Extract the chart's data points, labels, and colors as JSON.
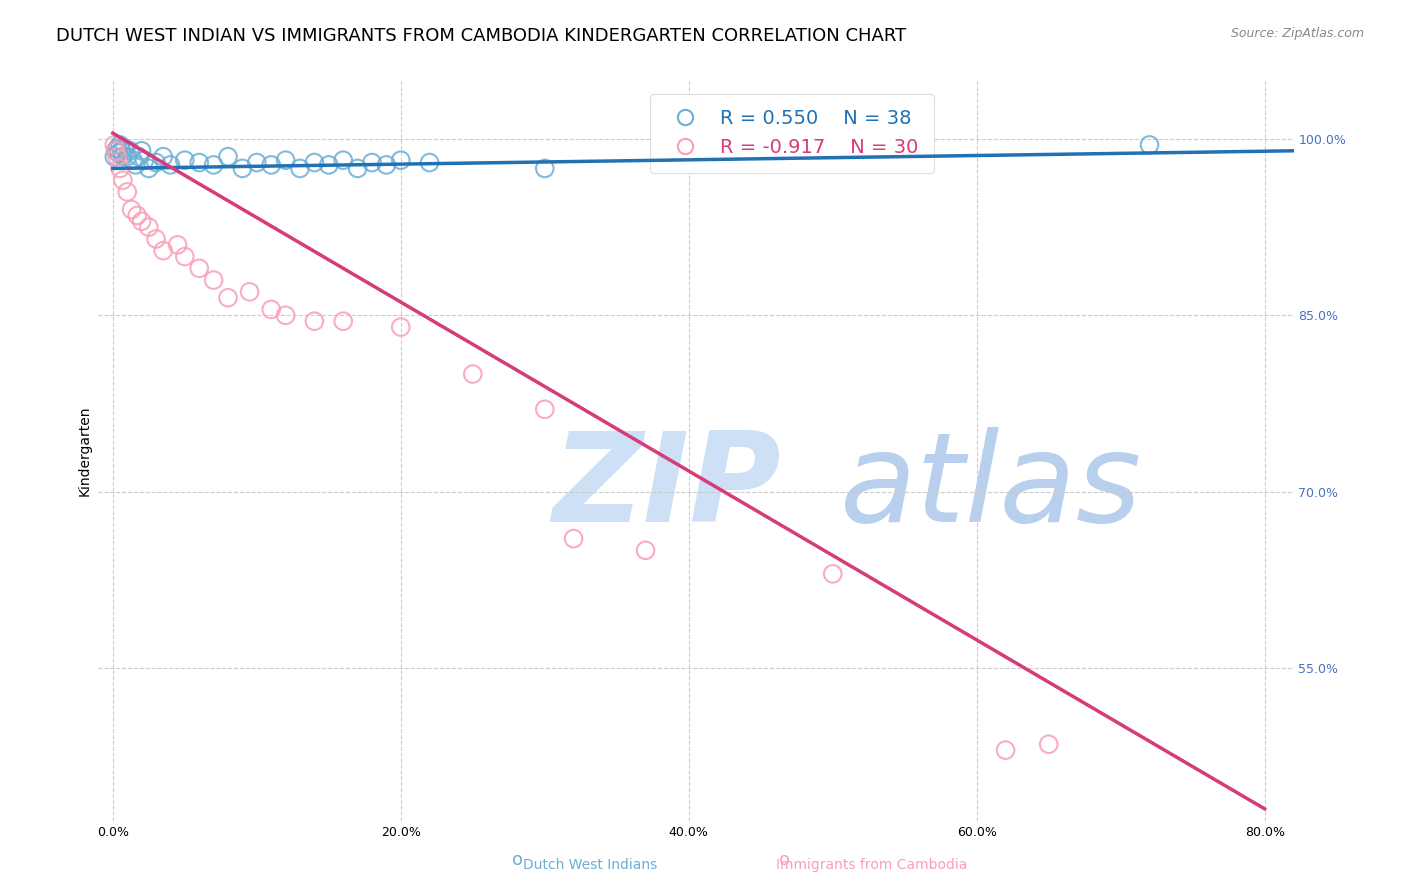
{
  "title": "DUTCH WEST INDIAN VS IMMIGRANTS FROM CAMBODIA KINDERGARTEN CORRELATION CHART",
  "source": "Source: ZipAtlas.com",
  "ylabel": "Kindergarten",
  "xlabel_vals": [
    0,
    20,
    40,
    60,
    80
  ],
  "ylabel_vals": [
    100,
    85,
    70,
    55
  ],
  "xlim": [
    -1,
    82
  ],
  "ylim": [
    42,
    105
  ],
  "blue_R": 0.55,
  "blue_N": 38,
  "pink_R": -0.917,
  "pink_N": 30,
  "blue_color": "#6baed6",
  "pink_color": "#fa9fb5",
  "blue_line_color": "#2171b5",
  "pink_line_color": "#d63b7a",
  "legend_label_blue": "Dutch West Indians",
  "legend_label_pink": "Immigrants from Cambodia",
  "watermark": "ZIPatlas",
  "blue_scatter_x": [
    0.1,
    0.2,
    0.3,
    0.4,
    0.5,
    0.6,
    0.7,
    0.8,
    1.0,
    1.2,
    1.4,
    1.6,
    1.8,
    2.0,
    2.2,
    2.5,
    3.0,
    3.5,
    4.0,
    5.0,
    6.0,
    7.0,
    8.0,
    9.0,
    10.0,
    11.0,
    12.0,
    13.0,
    14.0,
    15.0,
    16.0,
    17.0,
    18.0,
    19.0,
    20.0,
    22.0,
    30.0,
    72.0
  ],
  "blue_scatter_y": [
    98.5,
    99.0,
    99.2,
    98.8,
    99.5,
    99.0,
    98.5,
    99.2,
    98.5,
    99.0,
    98.2,
    97.8,
    98.5,
    99.0,
    98.2,
    97.5,
    98.0,
    98.5,
    97.8,
    98.2,
    98.0,
    97.8,
    98.5,
    97.5,
    98.0,
    97.8,
    98.2,
    97.5,
    98.0,
    97.8,
    98.2,
    97.5,
    98.0,
    97.8,
    98.2,
    98.0,
    97.5,
    99.5
  ],
  "pink_scatter_x": [
    0.1,
    0.2,
    0.3,
    0.5,
    0.7,
    1.0,
    1.3,
    1.7,
    2.0,
    2.5,
    3.0,
    3.5,
    4.5,
    5.0,
    6.0,
    7.0,
    8.0,
    9.5,
    11.0,
    12.0,
    14.0,
    16.0,
    20.0,
    25.0,
    30.0,
    32.0,
    37.0,
    50.0,
    62.0,
    65.0
  ],
  "pink_scatter_y": [
    99.5,
    99.0,
    98.5,
    97.5,
    96.5,
    95.5,
    94.0,
    93.5,
    93.0,
    92.5,
    91.5,
    90.5,
    91.0,
    90.0,
    89.0,
    88.0,
    86.5,
    87.0,
    85.5,
    85.0,
    84.5,
    84.5,
    84.0,
    80.0,
    77.0,
    66.0,
    65.0,
    63.0,
    48.0,
    48.5
  ],
  "blue_line_x": [
    0,
    82
  ],
  "blue_line_y": [
    97.5,
    99.0
  ],
  "pink_line_x": [
    0,
    80
  ],
  "pink_line_y": [
    100.5,
    43.0
  ],
  "grid_color": "#cccccc",
  "title_fontsize": 13,
  "axis_label_fontsize": 10,
  "tick_fontsize": 9,
  "right_tick_color": "#4472c4",
  "watermark_color": "#dae8f5",
  "background_color": "#ffffff"
}
